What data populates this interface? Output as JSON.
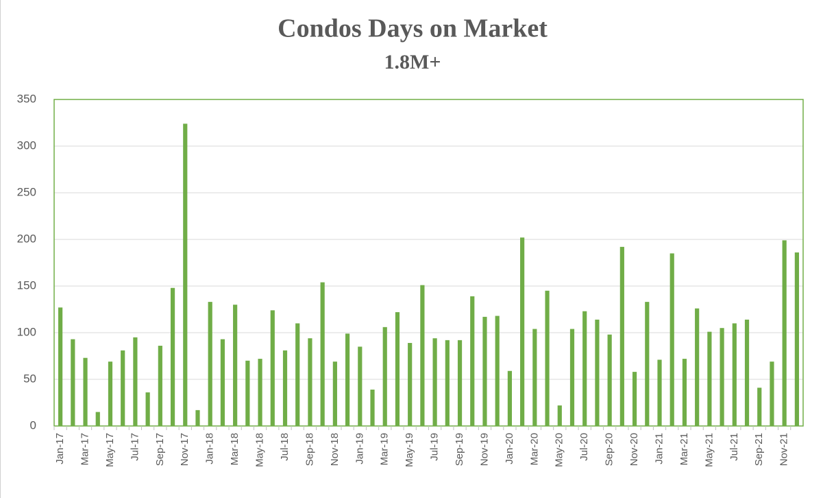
{
  "chart_data": {
    "type": "bar",
    "title": "Condos Days on Market",
    "subtitle": "1.8M+",
    "categories": [
      "Jan-17",
      null,
      "Mar-17",
      null,
      "May-17",
      null,
      "Jul-17",
      null,
      "Sep-17",
      null,
      "Nov-17",
      null,
      "Jan-18",
      null,
      "Mar-18",
      null,
      "May-18",
      null,
      "Jul-18",
      null,
      "Sep-18",
      null,
      "Nov-18",
      null,
      "Jan-19",
      null,
      "Mar-19",
      null,
      "May-19",
      null,
      "Jul-19",
      null,
      "Sep-19",
      null,
      "Nov-19",
      null,
      "Jan-20",
      null,
      "Mar-20",
      null,
      "May-20",
      null,
      "Jul-20",
      null,
      "Sep-20",
      null,
      "Nov-20",
      null,
      "Jan-21",
      null,
      "Mar-21",
      null,
      "May-21",
      null,
      "Jul-21",
      null,
      "Sep-21",
      null,
      "Nov-21",
      null
    ],
    "values": [
      127,
      93,
      73,
      15,
      69,
      81,
      95,
      36,
      86,
      148,
      324,
      17,
      133,
      93,
      130,
      70,
      72,
      124,
      81,
      110,
      94,
      154,
      69,
      99,
      85,
      39,
      106,
      122,
      89,
      151,
      94,
      92,
      92,
      139,
      117,
      118,
      59,
      202,
      104,
      145,
      22,
      104,
      123,
      114,
      98,
      192,
      58,
      133,
      71,
      185,
      72,
      126,
      101,
      105,
      110,
      114,
      41,
      69,
      199,
      186
    ],
    "color": "#70ad47",
    "ylim": [
      0,
      350
    ],
    "yticks": [
      0,
      50,
      100,
      150,
      200,
      250,
      300,
      350
    ],
    "grid": true
  }
}
